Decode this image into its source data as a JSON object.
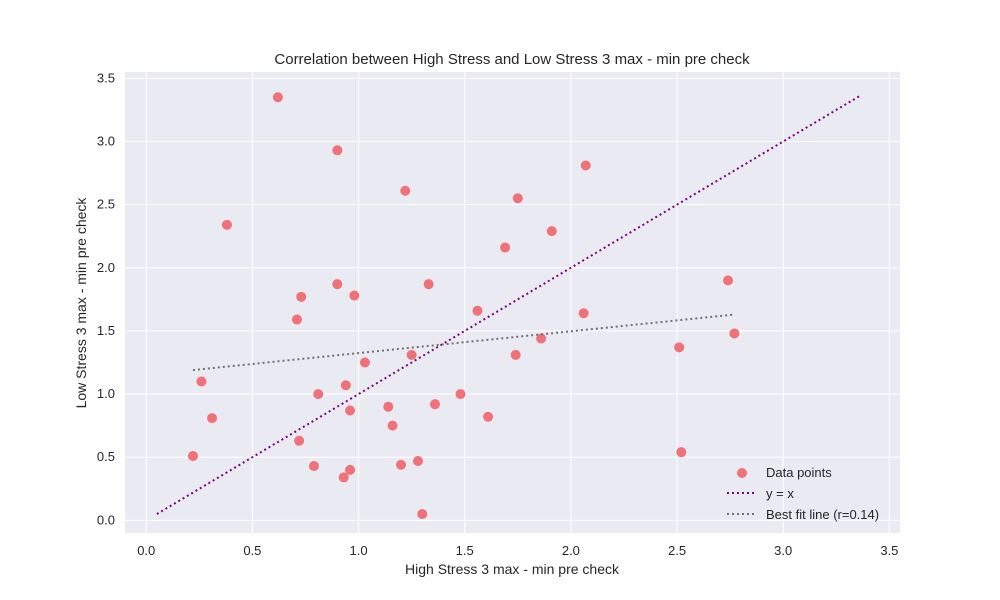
{
  "chart_data": {
    "type": "scatter",
    "title": "Correlation between High Stress and Low Stress 3 max - min pre  check",
    "xlabel": "High Stress 3 max - min pre  check",
    "ylabel": "Low Stress 3 max - min pre  check",
    "xlim": [
      -0.1,
      3.55
    ],
    "ylim": [
      -0.1,
      3.55
    ],
    "xticks": [
      "0.0",
      "0.5",
      "1.0",
      "1.5",
      "2.0",
      "2.5",
      "3.0",
      "3.5"
    ],
    "yticks": [
      "0.0",
      "0.5",
      "1.0",
      "1.5",
      "2.0",
      "2.5",
      "3.0",
      "3.5"
    ],
    "grid": true,
    "legend_position": "bottom-right",
    "colors": {
      "background": "#eaeaf2",
      "points": "#f07278",
      "identity_line": "#800080",
      "fit_line": "#707070"
    },
    "series": [
      {
        "name": "Data points",
        "kind": "scatter",
        "points": [
          [
            0.22,
            0.51
          ],
          [
            0.26,
            1.1
          ],
          [
            0.31,
            0.81
          ],
          [
            0.38,
            2.34
          ],
          [
            0.62,
            3.35
          ],
          [
            0.71,
            1.59
          ],
          [
            0.72,
            0.63
          ],
          [
            0.73,
            1.77
          ],
          [
            0.79,
            0.43
          ],
          [
            0.81,
            1.0
          ],
          [
            0.9,
            2.93
          ],
          [
            0.9,
            1.87
          ],
          [
            0.93,
            0.34
          ],
          [
            0.94,
            1.07
          ],
          [
            0.96,
            0.87
          ],
          [
            0.96,
            0.4
          ],
          [
            0.98,
            1.78
          ],
          [
            1.03,
            1.25
          ],
          [
            1.14,
            0.9
          ],
          [
            1.16,
            0.75
          ],
          [
            1.2,
            0.44
          ],
          [
            1.22,
            2.61
          ],
          [
            1.25,
            1.31
          ],
          [
            1.28,
            0.47
          ],
          [
            1.3,
            0.05
          ],
          [
            1.33,
            1.87
          ],
          [
            1.36,
            0.92
          ],
          [
            1.48,
            1.0
          ],
          [
            1.56,
            1.66
          ],
          [
            1.61,
            0.82
          ],
          [
            1.69,
            2.16
          ],
          [
            1.74,
            1.31
          ],
          [
            1.75,
            2.55
          ],
          [
            1.86,
            1.44
          ],
          [
            1.91,
            2.29
          ],
          [
            2.06,
            1.64
          ],
          [
            2.07,
            2.81
          ],
          [
            2.51,
            1.37
          ],
          [
            2.52,
            0.54
          ],
          [
            2.74,
            1.9
          ],
          [
            2.77,
            1.48
          ]
        ]
      },
      {
        "name": "y = x",
        "kind": "line",
        "style": "dotted",
        "points": [
          [
            0.05,
            0.05
          ],
          [
            3.36,
            3.36
          ]
        ]
      },
      {
        "name": "Best fit line (r=0.14)",
        "kind": "line",
        "style": "dotted",
        "points": [
          [
            0.22,
            1.19
          ],
          [
            2.77,
            1.63
          ]
        ]
      }
    ]
  }
}
